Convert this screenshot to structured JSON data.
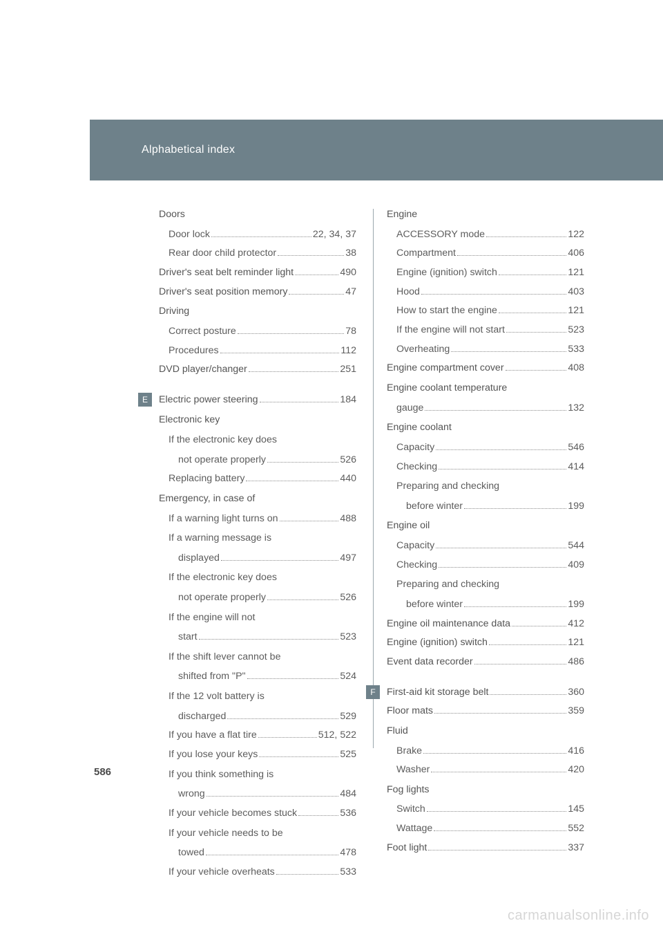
{
  "header": {
    "title": "Alphabetical index"
  },
  "page_number": "586",
  "watermark": "carmanualsonline.info",
  "letter_tabs": {
    "E": "E",
    "F": "F"
  },
  "col1": [
    {
      "t": "heading",
      "label": "Doors"
    },
    {
      "t": "entry",
      "indent": 1,
      "label": "Door lock",
      "page": "22, 34, 37"
    },
    {
      "t": "entry",
      "indent": 1,
      "label": "Rear door child protector",
      "page": "38"
    },
    {
      "t": "entry",
      "bold": true,
      "label": "Driver's seat belt reminder light",
      "page": "490"
    },
    {
      "t": "entry",
      "bold": true,
      "label": "Driver's seat position memory",
      "page": "47"
    },
    {
      "t": "heading",
      "label": "Driving"
    },
    {
      "t": "entry",
      "indent": 1,
      "label": "Correct posture",
      "page": "78"
    },
    {
      "t": "entry",
      "indent": 1,
      "label": "Procedures",
      "page": "112"
    },
    {
      "t": "entry",
      "bold": true,
      "label": "DVD player/changer",
      "page": "251"
    },
    {
      "t": "gap"
    },
    {
      "t": "entry",
      "bold": true,
      "label": "Electric power steering",
      "page": "184",
      "tab": "E"
    },
    {
      "t": "heading",
      "label": "Electronic key"
    },
    {
      "t": "line",
      "indent": 1,
      "label": "If the electronic key does"
    },
    {
      "t": "entry",
      "indent": 2,
      "label": "not operate properly",
      "page": "526"
    },
    {
      "t": "entry",
      "indent": 1,
      "label": "Replacing battery",
      "page": "440"
    },
    {
      "t": "heading",
      "label": "Emergency, in case of"
    },
    {
      "t": "entry",
      "indent": 1,
      "label": "If a warning light turns on",
      "page": "488"
    },
    {
      "t": "line",
      "indent": 1,
      "label": "If a warning message is"
    },
    {
      "t": "entry",
      "indent": 2,
      "label": "displayed",
      "page": "497"
    },
    {
      "t": "line",
      "indent": 1,
      "label": "If the electronic key does"
    },
    {
      "t": "entry",
      "indent": 2,
      "label": "not operate properly",
      "page": "526"
    },
    {
      "t": "line",
      "indent": 1,
      "label": "If the engine will not"
    },
    {
      "t": "entry",
      "indent": 2,
      "label": "start",
      "page": "523"
    },
    {
      "t": "line",
      "indent": 1,
      "label": "If the shift lever cannot be"
    },
    {
      "t": "entry",
      "indent": 2,
      "label": "shifted from \"P\"",
      "page": "524"
    },
    {
      "t": "line",
      "indent": 1,
      "label": "If the 12 volt battery is"
    },
    {
      "t": "entry",
      "indent": 2,
      "label": "discharged",
      "page": "529"
    },
    {
      "t": "entry",
      "indent": 1,
      "label": "If you have a flat tire",
      "page": "512, 522"
    },
    {
      "t": "entry",
      "indent": 1,
      "label": "If you lose your keys",
      "page": "525"
    },
    {
      "t": "line",
      "indent": 1,
      "label": "If you think something is"
    },
    {
      "t": "entry",
      "indent": 2,
      "label": "wrong",
      "page": "484"
    },
    {
      "t": "entry",
      "indent": 1,
      "label": "If your vehicle becomes stuck",
      "page": "536"
    },
    {
      "t": "line",
      "indent": 1,
      "label": "If your vehicle needs to be"
    },
    {
      "t": "entry",
      "indent": 2,
      "label": "towed",
      "page": "478"
    },
    {
      "t": "entry",
      "indent": 1,
      "label": "If your vehicle overheats",
      "page": "533"
    }
  ],
  "col2": [
    {
      "t": "heading",
      "label": "Engine"
    },
    {
      "t": "entry",
      "indent": 1,
      "label": "ACCESSORY mode",
      "page": "122"
    },
    {
      "t": "entry",
      "indent": 1,
      "label": "Compartment",
      "page": "406"
    },
    {
      "t": "entry",
      "indent": 1,
      "label": "Engine (ignition) switch",
      "page": "121"
    },
    {
      "t": "entry",
      "indent": 1,
      "label": "Hood",
      "page": "403"
    },
    {
      "t": "entry",
      "indent": 1,
      "label": "How to start the engine",
      "page": "121"
    },
    {
      "t": "entry",
      "indent": 1,
      "label": "If the engine will not start",
      "page": "523"
    },
    {
      "t": "entry",
      "indent": 1,
      "label": "Overheating",
      "page": "533"
    },
    {
      "t": "entry",
      "bold": true,
      "label": "Engine compartment cover",
      "page": "408"
    },
    {
      "t": "heading",
      "label": "Engine coolant temperature"
    },
    {
      "t": "entry",
      "indent": 1,
      "label": "gauge",
      "page": "132"
    },
    {
      "t": "heading",
      "label": "Engine coolant"
    },
    {
      "t": "entry",
      "indent": 1,
      "label": "Capacity",
      "page": "546"
    },
    {
      "t": "entry",
      "indent": 1,
      "label": "Checking",
      "page": "414"
    },
    {
      "t": "line",
      "indent": 1,
      "label": "Preparing and checking"
    },
    {
      "t": "entry",
      "indent": 2,
      "label": "before winter",
      "page": "199"
    },
    {
      "t": "heading",
      "label": "Engine oil"
    },
    {
      "t": "entry",
      "indent": 1,
      "label": "Capacity",
      "page": "544"
    },
    {
      "t": "entry",
      "indent": 1,
      "label": "Checking",
      "page": "409"
    },
    {
      "t": "line",
      "indent": 1,
      "label": "Preparing and checking"
    },
    {
      "t": "entry",
      "indent": 2,
      "label": "before winter",
      "page": "199"
    },
    {
      "t": "entry",
      "bold": true,
      "label": "Engine oil maintenance data",
      "page": "412"
    },
    {
      "t": "entry",
      "bold": true,
      "label": "Engine (ignition) switch",
      "page": "121"
    },
    {
      "t": "entry",
      "bold": true,
      "label": "Event data recorder",
      "page": "486"
    },
    {
      "t": "gap"
    },
    {
      "t": "entry",
      "bold": true,
      "label": "First-aid kit storage belt",
      "page": "360",
      "tab": "F"
    },
    {
      "t": "entry",
      "bold": true,
      "label": "Floor mats",
      "page": "359"
    },
    {
      "t": "heading",
      "label": "Fluid"
    },
    {
      "t": "entry",
      "indent": 1,
      "label": "Brake",
      "page": "416"
    },
    {
      "t": "entry",
      "indent": 1,
      "label": "Washer",
      "page": "420"
    },
    {
      "t": "heading",
      "label": "Fog lights"
    },
    {
      "t": "entry",
      "indent": 1,
      "label": "Switch",
      "page": "145"
    },
    {
      "t": "entry",
      "indent": 1,
      "label": "Wattage",
      "page": "552"
    },
    {
      "t": "entry",
      "bold": true,
      "label": "Foot light",
      "page": "337"
    }
  ]
}
